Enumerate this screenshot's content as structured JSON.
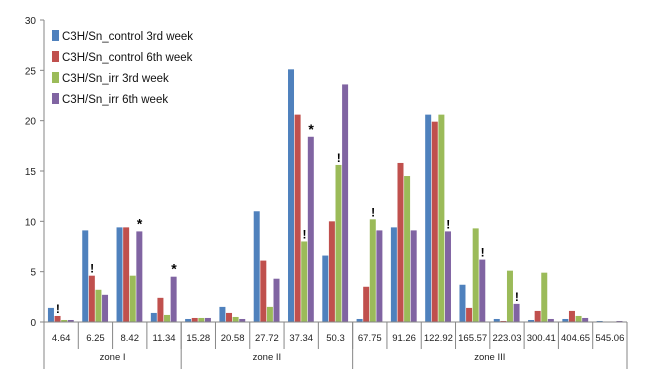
{
  "chart_data": {
    "type": "bar",
    "title": "",
    "xlabel": "",
    "ylabel": "",
    "ylim": [
      0,
      30
    ],
    "yticks": [
      0,
      5,
      10,
      15,
      20,
      25,
      30
    ],
    "grid": false,
    "legend_position": "top-left",
    "categories": [
      "4.64",
      "6.25",
      "8.42",
      "11.34",
      "15.28",
      "20.58",
      "27.72",
      "37.34",
      "50.3",
      "67.75",
      "91.26",
      "122.92",
      "165.57",
      "223.03",
      "300.41",
      "404.65",
      "545.06"
    ],
    "groups": [
      {
        "label": "zone I",
        "categories": [
          "4.64",
          "6.25",
          "8.42",
          "11.34"
        ]
      },
      {
        "label": "zone II",
        "categories": [
          "15.28",
          "20.58",
          "27.72",
          "37.34",
          "50.3"
        ]
      },
      {
        "label": "zone III",
        "categories": [
          "67.75",
          "91.26",
          "122.92",
          "165.57",
          "223.03",
          "300.41",
          "404.65",
          "545.06"
        ]
      }
    ],
    "series": [
      {
        "name": "C3H/Sn_control 3rd week",
        "color": "#4f81bd",
        "values": [
          1.4,
          9.1,
          9.4,
          0.9,
          0.3,
          1.5,
          11.0,
          25.1,
          6.6,
          0.3,
          9.4,
          20.6,
          3.7,
          0.3,
          0.2,
          0.3,
          0.1
        ]
      },
      {
        "name": "C3H/Sn_control 6th week",
        "color": "#c0504d",
        "values": [
          0.6,
          4.6,
          9.4,
          2.4,
          0.4,
          0.9,
          6.1,
          20.6,
          10.0,
          3.5,
          15.8,
          19.9,
          1.4,
          0.1,
          1.1,
          1.1,
          0.0
        ]
      },
      {
        "name": "C3H/Sn_irr 3rd week",
        "color": "#9bbb59",
        "values": [
          0.2,
          3.2,
          4.6,
          0.7,
          0.4,
          0.5,
          1.5,
          8.0,
          15.6,
          10.2,
          14.5,
          20.6,
          9.3,
          5.1,
          4.9,
          0.6,
          0.0
        ]
      },
      {
        "name": "C3H/Sn_irr 6th week",
        "color": "#8064a2",
        "values": [
          0.2,
          2.7,
          9.0,
          4.5,
          0.4,
          0.3,
          4.3,
          18.4,
          23.6,
          9.1,
          9.1,
          9.0,
          6.2,
          1.8,
          0.3,
          0.4,
          0.1
        ]
      }
    ],
    "annotations": [
      {
        "text": "!",
        "category": "4.64",
        "series": 1
      },
      {
        "text": "!",
        "category": "6.25",
        "series": 1
      },
      {
        "text": "*",
        "category": "8.42",
        "series": 3
      },
      {
        "text": "*",
        "category": "11.34",
        "series": 3
      },
      {
        "text": "!",
        "category": "37.34",
        "series": 2
      },
      {
        "text": "*",
        "category": "37.34",
        "series": 3
      },
      {
        "text": "!",
        "category": "50.3",
        "series": 2
      },
      {
        "text": "!",
        "category": "67.75",
        "series": 2
      },
      {
        "text": "!",
        "category": "122.92",
        "series": 3
      },
      {
        "text": "!",
        "category": "165.57",
        "series": 3
      },
      {
        "text": "!",
        "category": "223.03",
        "series": 3
      }
    ]
  }
}
